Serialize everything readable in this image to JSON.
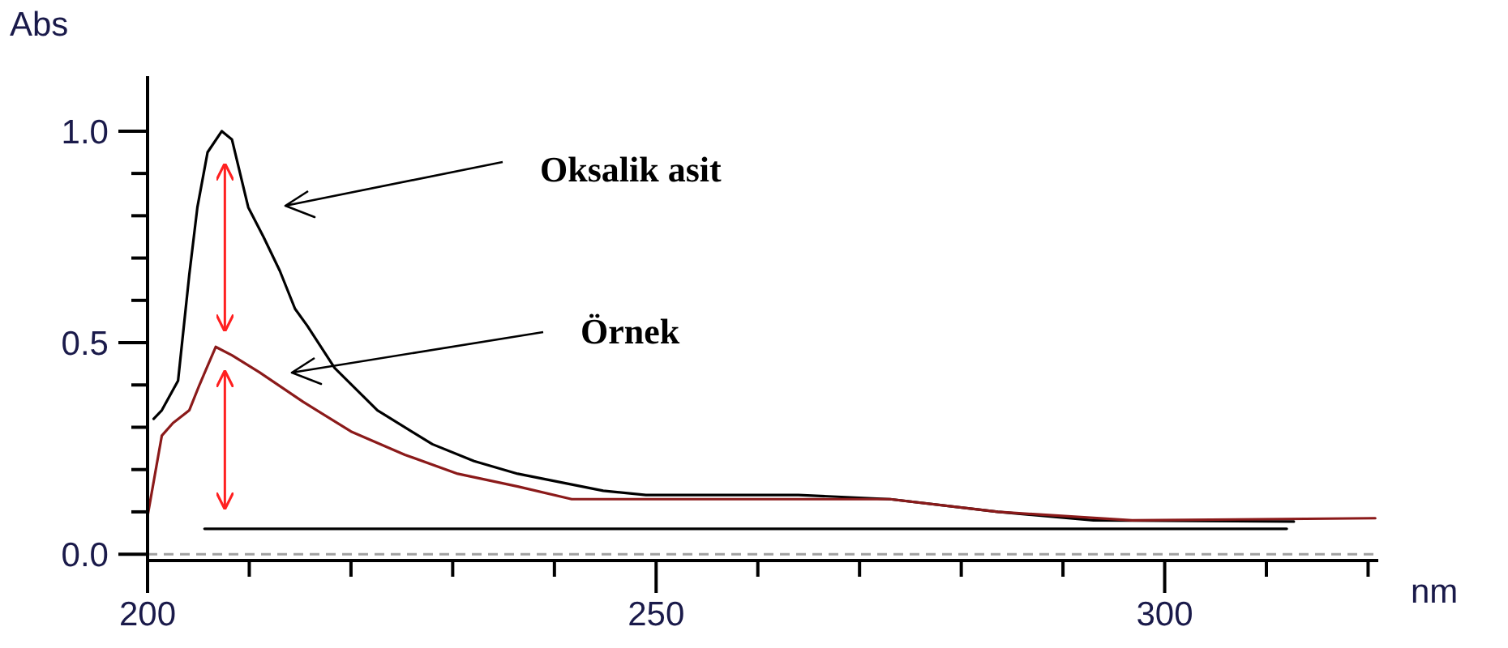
{
  "chart_data": {
    "type": "line",
    "xlabel": "nm",
    "ylabel": "Abs",
    "xlim": [
      200,
      321
    ],
    "ylim": [
      -0.015,
      1.13
    ],
    "xticks": [
      200,
      {
        "value": 210,
        "label": null
      },
      {
        "value": 220,
        "label": null
      },
      {
        "value": 230,
        "label": null
      },
      {
        "value": 240,
        "label": null
      },
      250,
      {
        "value": 260,
        "label": null
      },
      {
        "value": 270,
        "label": null
      },
      {
        "value": 280,
        "label": null
      },
      {
        "value": 290,
        "label": null
      },
      300,
      {
        "value": 310,
        "label": null
      },
      {
        "value": 320,
        "label": null
      }
    ],
    "yticks": [
      {
        "value": 0,
        "label": "0.0"
      },
      {
        "value": 0.1,
        "label": null
      },
      {
        "value": 0.2,
        "label": null
      },
      {
        "value": 0.3,
        "label": null
      },
      {
        "value": 0.4,
        "label": null
      },
      {
        "value": 0.5,
        "label": "0.5"
      },
      {
        "value": 0.6,
        "label": null
      },
      {
        "value": 0.7,
        "label": null
      },
      {
        "value": 0.8,
        "label": null
      },
      {
        "value": 0.9,
        "label": null
      },
      {
        "value": 1,
        "label": "1.0"
      }
    ],
    "grid": false,
    "series": [
      {
        "color": "#000000",
        "x": [
          200.6,
          201.4,
          203,
          204.1,
          204.9,
          205.9,
          207.3,
          208.3,
          209.9,
          211.4,
          213,
          214.5,
          215.7,
          218.4,
          222.6,
          228,
          232.1,
          236.4,
          238.5,
          244.8,
          249,
          264,
          273,
          283.6,
          293,
          312.7
        ],
        "values": [
          0.32,
          0.34,
          0.41,
          0.66,
          0.82,
          0.95,
          1.0,
          0.98,
          0.82,
          0.75,
          0.67,
          0.58,
          0.54,
          0.44,
          0.34,
          0.26,
          0.22,
          0.19,
          0.18,
          0.15,
          0.14,
          0.14,
          0.13,
          0.1,
          0.08,
          0.077
        ]
      },
      {
        "color": "#8b1a1a",
        "x": [
          200,
          201.4,
          202.5,
          204.1,
          205.1,
          206.7,
          208.3,
          211,
          215.3,
          220,
          225.3,
          230.5,
          236.4,
          241.7,
          255,
          273,
          283.6,
          296.8,
          320.7
        ],
        "values": [
          0.09,
          0.28,
          0.31,
          0.34,
          0.4,
          0.49,
          0.47,
          0.43,
          0.36,
          0.29,
          0.235,
          0.19,
          0.16,
          0.13,
          0.13,
          0.13,
          0.1,
          0.08,
          0.085
        ]
      },
      {
        "color": "#000000",
        "x": [
          205.6,
          312
        ],
        "values": [
          0.06,
          0.06
        ]
      }
    ],
    "ref_lines": [
      {
        "axis": "y",
        "value": 0,
        "color": "#a0a0a0",
        "line_style": "dashed"
      }
    ],
    "annotations": [
      "Oksalik asit",
      "Örnek"
    ]
  }
}
